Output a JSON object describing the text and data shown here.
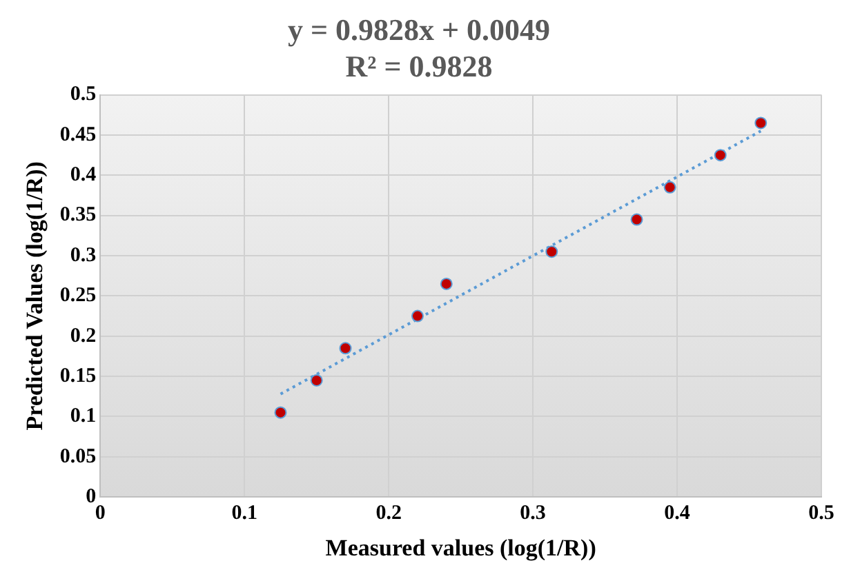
{
  "chart_data": {
    "type": "scatter",
    "title": "y = 0.9828x + 0.0049",
    "subtitle": "R² = 0.9828",
    "xlabel": "Measured values (log(1/R))",
    "ylabel": "Predicted Values (log(1/R))",
    "x": [
      0.125,
      0.15,
      0.17,
      0.22,
      0.24,
      0.313,
      0.372,
      0.395,
      0.43,
      0.458
    ],
    "series": [
      {
        "type": "scatter",
        "color": "#c00000",
        "values": [
          0.105,
          0.145,
          0.185,
          0.225,
          0.265,
          0.305,
          0.345,
          0.385,
          0.425,
          0.465
        ]
      },
      {
        "type": "line",
        "color": "#5b9bd5",
        "x": [
          0.125,
          0.458
        ],
        "values": [
          0.128,
          0.455
        ],
        "line_style": "dotted",
        "marker": "none"
      }
    ],
    "xlim": [
      0,
      0.5
    ],
    "xticks": [
      0,
      0.1,
      0.2,
      0.3,
      0.4,
      0.5
    ],
    "ylim": [
      0,
      0.5
    ],
    "yticks": [
      0,
      0.05,
      0.1,
      0.15,
      0.2,
      0.25,
      0.3,
      0.35,
      0.4,
      0.45,
      0.5
    ],
    "grid": true,
    "legend": false,
    "marker": "circle"
  }
}
